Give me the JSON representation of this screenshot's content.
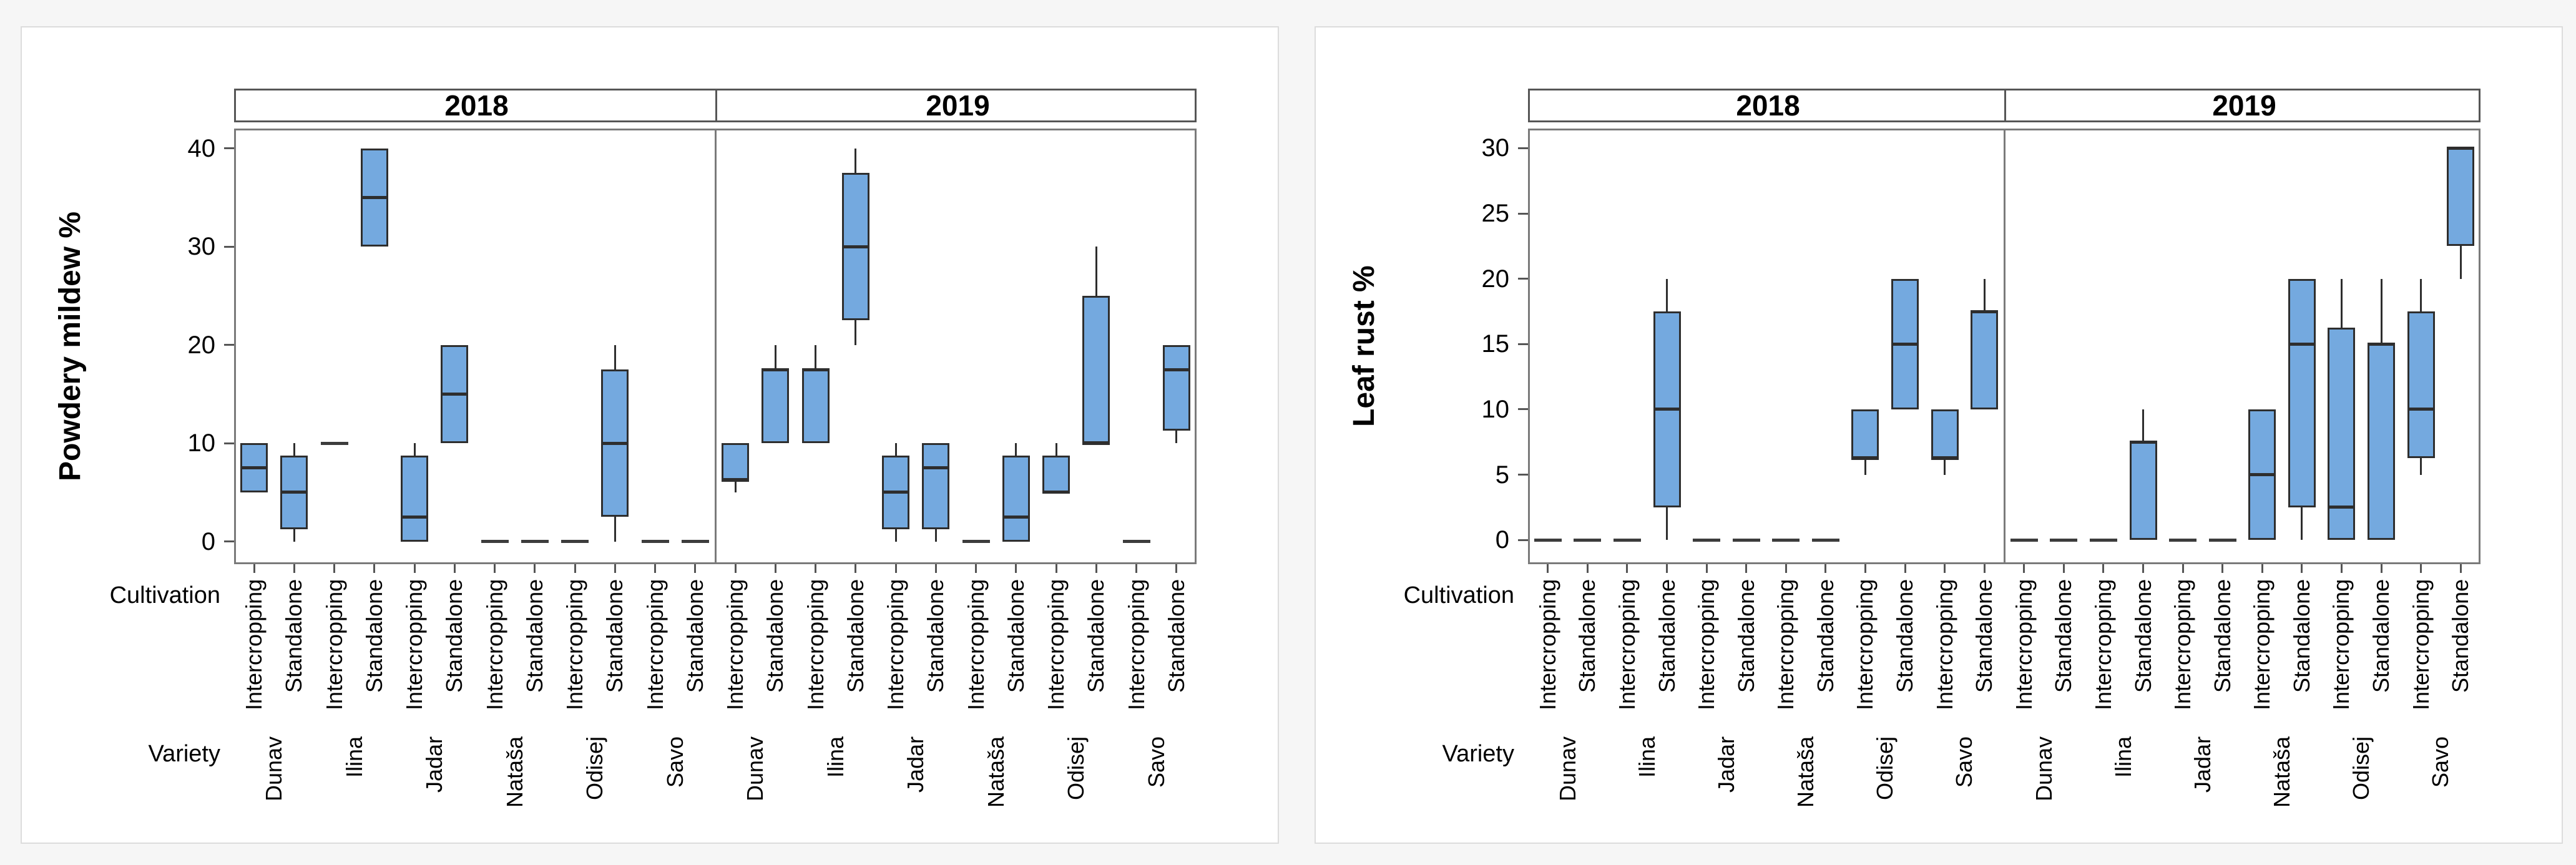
{
  "figure": {
    "background": "#f6f6f6",
    "chart_background": "#ffffff",
    "chart_border": "#dcdcdc"
  },
  "styles": {
    "box_fill": "#74a9df",
    "box_border": "#2e2e2e",
    "whisker_color": "#2e2e2e",
    "dash_color": "#3c3c3c",
    "frame_color": "#7a7a7a",
    "band_border": "#565656",
    "tick_color": "#555555",
    "text_color": "#000000"
  },
  "row_labels": {
    "cultivation": "Cultivation",
    "variety": "Variety"
  },
  "chart_data": [
    {
      "type": "boxplot",
      "ylabel": "Powdery mildew %",
      "ylim": [
        -2.3,
        42
      ],
      "yticks": [
        0,
        10,
        20,
        30,
        40
      ],
      "legend_position": "none",
      "grid": false,
      "cultivations": [
        "Intercropping",
        "Standalone"
      ],
      "varieties": [
        "Dunav",
        "Ilina",
        "Jadar",
        "Nataša",
        "Odisej",
        "Savo"
      ],
      "panels": [
        {
          "label": "2018",
          "boxes": [
            {
              "variety": "Dunav",
              "cultivation": "Intercropping",
              "low": 5,
              "q1": 5,
              "median": 7.5,
              "q3": 10,
              "high": 10
            },
            {
              "variety": "Dunav",
              "cultivation": "Standalone",
              "low": 0,
              "q1": 1.25,
              "median": 5,
              "q3": 8.75,
              "high": 10
            },
            {
              "variety": "Ilina",
              "cultivation": "Intercropping",
              "value": 10
            },
            {
              "variety": "Ilina",
              "cultivation": "Standalone",
              "low": 30,
              "q1": 30,
              "median": 35,
              "q3": 40,
              "high": 40
            },
            {
              "variety": "Jadar",
              "cultivation": "Intercropping",
              "low": 0,
              "q1": 0,
              "median": 2.5,
              "q3": 8.75,
              "high": 10
            },
            {
              "variety": "Jadar",
              "cultivation": "Standalone",
              "low": 10,
              "q1": 10,
              "median": 15,
              "q3": 20,
              "high": 20
            },
            {
              "variety": "Nataša",
              "cultivation": "Intercropping",
              "value": 0
            },
            {
              "variety": "Nataša",
              "cultivation": "Standalone",
              "value": 0
            },
            {
              "variety": "Odisej",
              "cultivation": "Intercropping",
              "value": 0
            },
            {
              "variety": "Odisej",
              "cultivation": "Standalone",
              "low": 0,
              "q1": 2.5,
              "median": 10,
              "q3": 17.5,
              "high": 20
            },
            {
              "variety": "Savo",
              "cultivation": "Intercropping",
              "value": 0
            },
            {
              "variety": "Savo",
              "cultivation": "Standalone",
              "value": 0
            }
          ]
        },
        {
          "label": "2019",
          "boxes": [
            {
              "variety": "Dunav",
              "cultivation": "Intercropping",
              "low": 5,
              "q1": 6.25,
              "median": 6.25,
              "q3": 10,
              "high": 10
            },
            {
              "variety": "Dunav",
              "cultivation": "Standalone",
              "low": 10,
              "q1": 10,
              "median": 17.5,
              "q3": 17.5,
              "high": 20
            },
            {
              "variety": "Ilina",
              "cultivation": "Intercropping",
              "low": 10,
              "q1": 10,
              "median": 17.5,
              "q3": 17.5,
              "high": 20
            },
            {
              "variety": "Ilina",
              "cultivation": "Standalone",
              "low": 20,
              "q1": 22.5,
              "median": 30,
              "q3": 37.5,
              "high": 40
            },
            {
              "variety": "Jadar",
              "cultivation": "Intercropping",
              "low": 0,
              "q1": 1.25,
              "median": 5,
              "q3": 8.75,
              "high": 10
            },
            {
              "variety": "Jadar",
              "cultivation": "Standalone",
              "low": 0,
              "q1": 1.25,
              "median": 7.5,
              "q3": 10,
              "high": 10
            },
            {
              "variety": "Nataša",
              "cultivation": "Intercropping",
              "value": 0
            },
            {
              "variety": "Nataša",
              "cultivation": "Standalone",
              "low": 0,
              "q1": 0,
              "median": 2.5,
              "q3": 8.75,
              "high": 10
            },
            {
              "variety": "Odisej",
              "cultivation": "Intercropping",
              "low": 5,
              "q1": 5,
              "median": 5,
              "q3": 8.75,
              "high": 10
            },
            {
              "variety": "Odisej",
              "cultivation": "Standalone",
              "low": 10,
              "q1": 10,
              "median": 10,
              "q3": 25,
              "high": 30
            },
            {
              "variety": "Savo",
              "cultivation": "Intercropping",
              "value": 0
            },
            {
              "variety": "Savo",
              "cultivation": "Standalone",
              "low": 10,
              "q1": 11.25,
              "median": 17.5,
              "q3": 20,
              "high": 20
            }
          ]
        }
      ]
    },
    {
      "type": "boxplot",
      "ylabel": "Leaf rust %",
      "ylim": [
        -1.85,
        31.5
      ],
      "yticks": [
        0,
        5,
        10,
        15,
        20,
        25,
        30
      ],
      "legend_position": "none",
      "grid": false,
      "cultivations": [
        "Intercropping",
        "Standalone"
      ],
      "varieties": [
        "Dunav",
        "Ilina",
        "Jadar",
        "Nataša",
        "Odisej",
        "Savo"
      ],
      "panels": [
        {
          "label": "2018",
          "boxes": [
            {
              "variety": "Dunav",
              "cultivation": "Intercropping",
              "value": 0
            },
            {
              "variety": "Dunav",
              "cultivation": "Standalone",
              "value": 0
            },
            {
              "variety": "Ilina",
              "cultivation": "Intercropping",
              "value": 0
            },
            {
              "variety": "Ilina",
              "cultivation": "Standalone",
              "low": 0,
              "q1": 2.5,
              "median": 10,
              "q3": 17.5,
              "high": 20
            },
            {
              "variety": "Jadar",
              "cultivation": "Intercropping",
              "value": 0
            },
            {
              "variety": "Jadar",
              "cultivation": "Standalone",
              "value": 0
            },
            {
              "variety": "Nataša",
              "cultivation": "Intercropping",
              "value": 0
            },
            {
              "variety": "Nataša",
              "cultivation": "Standalone",
              "value": 0
            },
            {
              "variety": "Odisej",
              "cultivation": "Intercropping",
              "low": 5,
              "q1": 6.25,
              "median": 6.25,
              "q3": 10,
              "high": 10
            },
            {
              "variety": "Odisej",
              "cultivation": "Standalone",
              "low": 10,
              "q1": 10,
              "median": 15,
              "q3": 20,
              "high": 20
            },
            {
              "variety": "Savo",
              "cultivation": "Intercropping",
              "low": 5,
              "q1": 6.25,
              "median": 6.25,
              "q3": 10,
              "high": 10
            },
            {
              "variety": "Savo",
              "cultivation": "Standalone",
              "low": 10,
              "q1": 10,
              "median": 17.5,
              "q3": 17.5,
              "high": 20
            }
          ]
        },
        {
          "label": "2019",
          "boxes": [
            {
              "variety": "Dunav",
              "cultivation": "Intercropping",
              "value": 0
            },
            {
              "variety": "Dunav",
              "cultivation": "Standalone",
              "value": 0
            },
            {
              "variety": "Ilina",
              "cultivation": "Intercropping",
              "value": 0
            },
            {
              "variety": "Ilina",
              "cultivation": "Standalone",
              "low": 0,
              "q1": 0,
              "median": 7.5,
              "q3": 7.5,
              "high": 10
            },
            {
              "variety": "Jadar",
              "cultivation": "Intercropping",
              "value": 0
            },
            {
              "variety": "Jadar",
              "cultivation": "Standalone",
              "value": 0
            },
            {
              "variety": "Nataša",
              "cultivation": "Intercropping",
              "low": 0,
              "q1": 0,
              "median": 5,
              "q3": 10,
              "high": 10
            },
            {
              "variety": "Nataša",
              "cultivation": "Standalone",
              "low": 0,
              "q1": 2.5,
              "median": 15,
              "q3": 20,
              "high": 20
            },
            {
              "variety": "Odisej",
              "cultivation": "Intercropping",
              "low": 0,
              "q1": 0,
              "median": 2.5,
              "q3": 16.25,
              "high": 20
            },
            {
              "variety": "Odisej",
              "cultivation": "Standalone",
              "low": 0,
              "q1": 0,
              "median": 15,
              "q3": 15,
              "high": 20
            },
            {
              "variety": "Savo",
              "cultivation": "Intercropping",
              "low": 5,
              "q1": 6.25,
              "median": 10,
              "q3": 17.5,
              "high": 20
            },
            {
              "variety": "Savo",
              "cultivation": "Standalone",
              "low": 20,
              "q1": 22.5,
              "median": 30,
              "q3": 30,
              "high": 30
            }
          ]
        }
      ]
    }
  ]
}
